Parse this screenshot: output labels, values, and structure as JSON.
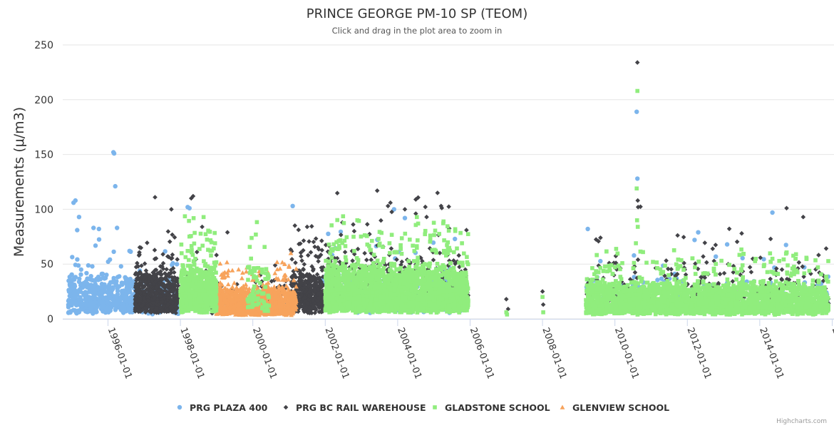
{
  "chart_data": {
    "type": "scatter",
    "title": "PRINCE GEORGE PM-10 SP (TEOM)",
    "subtitle": "Click and drag in the plot area to zoom in",
    "xlabel": "",
    "ylabel": "Measurements (μ/m3)",
    "x_type": "date (year)",
    "xlim": [
      1994.75,
      2016.05
    ],
    "ylim": [
      0,
      250
    ],
    "y_ticks": [
      0,
      50,
      100,
      150,
      200,
      250
    ],
    "x_ticks": [
      1996,
      1998,
      2000,
      2002,
      2004,
      2006,
      2008,
      2010,
      2012,
      2014,
      2016
    ],
    "x_tick_labels": [
      "1996-01-01",
      "1998-01-01",
      "2000-01-01",
      "2002-01-01",
      "2004-01-01",
      "2006-01-01",
      "2008-01-01",
      "2010-01-01",
      "2012-01-01",
      "2014-01-01",
      "2016-01-01"
    ],
    "grid": true,
    "legend_position": "bottom-center",
    "credits": "Highcharts.com",
    "series": [
      {
        "name": "PRG PLAZA 400",
        "marker": "circle",
        "color": "#7cb5ec",
        "segments": [
          {
            "start": 1994.9,
            "end": 1996.75,
            "median": 18,
            "n": 480
          },
          {
            "start": 1996.75,
            "end": 1997.95,
            "median": 16,
            "n": 110
          },
          {
            "start": 2001.9,
            "end": 2005.95,
            "median": 20,
            "n": 260
          },
          {
            "start": 2009.2,
            "end": 2015.9,
            "median": 17,
            "n": 230
          }
        ],
        "peaks": [
          {
            "x": 1995.05,
            "y": 106
          },
          {
            "x": 1995.1,
            "y": 108
          },
          {
            "x": 1995.2,
            "y": 93
          },
          {
            "x": 1995.15,
            "y": 81
          },
          {
            "x": 1995.6,
            "y": 83
          },
          {
            "x": 1995.75,
            "y": 82
          },
          {
            "x": 1996.15,
            "y": 152
          },
          {
            "x": 1996.17,
            "y": 151
          },
          {
            "x": 1996.2,
            "y": 121
          },
          {
            "x": 1996.25,
            "y": 83
          },
          {
            "x": 1998.2,
            "y": 102
          },
          {
            "x": 1998.25,
            "y": 101
          },
          {
            "x": 2001.1,
            "y": 103
          },
          {
            "x": 2003.9,
            "y": 100
          },
          {
            "x": 2004.2,
            "y": 92
          },
          {
            "x": 2009.25,
            "y": 82
          },
          {
            "x": 2010.6,
            "y": 189
          },
          {
            "x": 2010.62,
            "y": 128
          },
          {
            "x": 2012.3,
            "y": 79
          },
          {
            "x": 2012.2,
            "y": 72
          },
          {
            "x": 2014.35,
            "y": 97
          },
          {
            "x": 2013.1,
            "y": 68
          }
        ]
      },
      {
        "name": "PRG BC RAIL WAREHOUSE",
        "marker": "diamond",
        "color": "#434348",
        "segments": [
          {
            "start": 1996.75,
            "end": 1997.95,
            "median": 20,
            "n": 650
          },
          {
            "start": 1998.0,
            "end": 2001.05,
            "median": 18,
            "n": 160
          },
          {
            "start": 2001.05,
            "end": 2001.95,
            "median": 20,
            "n": 500
          },
          {
            "start": 2002.0,
            "end": 2005.95,
            "median": 28,
            "n": 420
          },
          {
            "start": 2009.2,
            "end": 2015.9,
            "median": 25,
            "n": 300
          }
        ],
        "peaks": [
          {
            "x": 1997.3,
            "y": 111
          },
          {
            "x": 1997.75,
            "y": 100
          },
          {
            "x": 1998.3,
            "y": 110
          },
          {
            "x": 1998.35,
            "y": 112
          },
          {
            "x": 1998.6,
            "y": 84
          },
          {
            "x": 1999.3,
            "y": 79
          },
          {
            "x": 2001.5,
            "y": 84
          },
          {
            "x": 2002.8,
            "y": 80
          },
          {
            "x": 2003.8,
            "y": 106
          },
          {
            "x": 2004.2,
            "y": 100
          },
          {
            "x": 2004.5,
            "y": 96
          },
          {
            "x": 2004.8,
            "y": 93
          },
          {
            "x": 2005.1,
            "y": 115
          },
          {
            "x": 2005.2,
            "y": 103
          },
          {
            "x": 2005.9,
            "y": 81
          },
          {
            "x": 2007.0,
            "y": 18
          },
          {
            "x": 2007.05,
            "y": 9
          },
          {
            "x": 2008.0,
            "y": 25
          },
          {
            "x": 2008.02,
            "y": 13
          },
          {
            "x": 2009.6,
            "y": 74
          },
          {
            "x": 2010.62,
            "y": 234
          },
          {
            "x": 2010.63,
            "y": 108
          },
          {
            "x": 2010.64,
            "y": 102
          },
          {
            "x": 2012.7,
            "y": 64
          },
          {
            "x": 2013.5,
            "y": 78
          },
          {
            "x": 2014.3,
            "y": 73
          },
          {
            "x": 2015.2,
            "y": 93
          }
        ]
      },
      {
        "name": "GLADSTONE SCHOOL",
        "marker": "square",
        "color": "#90ed7d",
        "segments": [
          {
            "start": 1998.0,
            "end": 1999.0,
            "median": 22,
            "n": 650
          },
          {
            "start": 1999.85,
            "end": 2000.45,
            "median": 24,
            "n": 80
          },
          {
            "start": 2002.0,
            "end": 2005.95,
            "median": 22,
            "n": 2400
          },
          {
            "start": 2009.2,
            "end": 2015.9,
            "median": 15,
            "n": 3600
          }
        ],
        "peaks": [
          {
            "x": 1998.2,
            "y": 62
          },
          {
            "x": 1999.95,
            "y": 55
          },
          {
            "x": 2002.8,
            "y": 62
          },
          {
            "x": 2004.9,
            "y": 76
          },
          {
            "x": 2007.0,
            "y": 6
          },
          {
            "x": 2007.02,
            "y": 4
          },
          {
            "x": 2008.0,
            "y": 20
          },
          {
            "x": 2008.02,
            "y": 6
          },
          {
            "x": 2010.62,
            "y": 208
          },
          {
            "x": 2010.6,
            "y": 119
          },
          {
            "x": 2010.61,
            "y": 90
          },
          {
            "x": 2010.63,
            "y": 84
          },
          {
            "x": 2010.58,
            "y": 69
          },
          {
            "x": 2015.0,
            "y": 59
          }
        ]
      },
      {
        "name": "GLENVIEW SCHOOL",
        "marker": "triangle",
        "color": "#f7a35c",
        "segments": [
          {
            "start": 1999.0,
            "end": 2001.2,
            "median": 13,
            "n": 1300
          }
        ],
        "peaks": [
          {
            "x": 2000.1,
            "y": 30
          },
          {
            "x": 2000.9,
            "y": 40
          },
          {
            "x": 2001.05,
            "y": 60
          }
        ]
      }
    ]
  }
}
